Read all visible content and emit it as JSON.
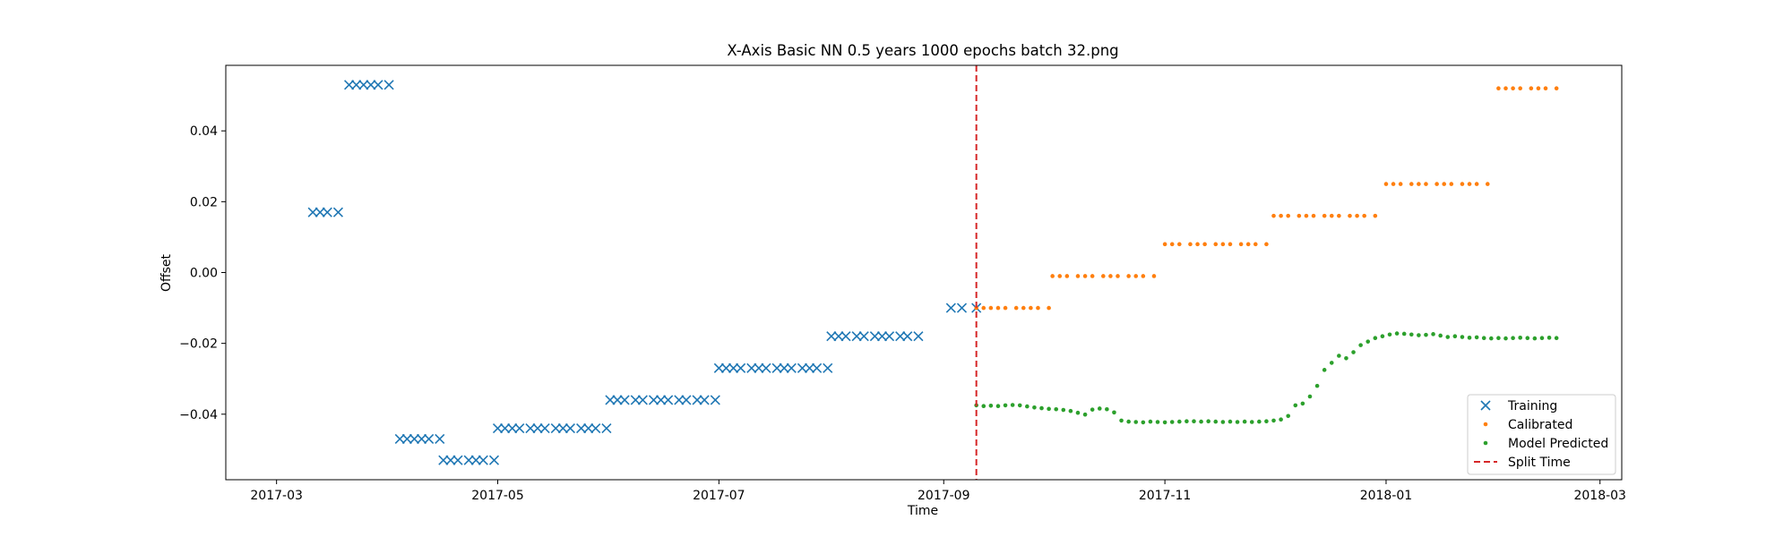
{
  "chart_data": {
    "type": "scatter",
    "title": "X-Axis Basic NN 0.5 years 1000 epochs batch 32.png",
    "xlabel": "Time",
    "ylabel": "Offset",
    "xlim": [
      "2017-02-15",
      "2018-03-07"
    ],
    "ylim": [
      -0.0585,
      0.0585
    ],
    "x_ticks": [
      {
        "date": "2017-03-01",
        "label": "2017-03"
      },
      {
        "date": "2017-05-01",
        "label": "2017-05"
      },
      {
        "date": "2017-07-01",
        "label": "2017-07"
      },
      {
        "date": "2017-09-01",
        "label": "2017-09"
      },
      {
        "date": "2017-11-01",
        "label": "2017-11"
      },
      {
        "date": "2018-01-01",
        "label": "2018-01"
      },
      {
        "date": "2018-03-01",
        "label": "2018-03"
      }
    ],
    "y_ticks": [
      {
        "value": -0.04,
        "label": "−0.04"
      },
      {
        "value": -0.02,
        "label": "−0.02"
      },
      {
        "value": 0.0,
        "label": "0.00"
      },
      {
        "value": 0.02,
        "label": "0.02"
      },
      {
        "value": 0.04,
        "label": "0.04"
      }
    ],
    "grid": false,
    "legend_position": "lower-right",
    "split_time": "2017-09-10",
    "series": [
      {
        "name": "Training",
        "marker": "x",
        "color": "#1f77b4",
        "segments": [
          {
            "start": "2017-03-11",
            "end": "2017-03-18",
            "y": 0.017,
            "count": 4
          },
          {
            "start": "2017-03-21",
            "end": "2017-04-01",
            "y": 0.053,
            "count": 6
          },
          {
            "start": "2017-04-04",
            "end": "2017-04-15",
            "y": -0.047,
            "count": 6
          },
          {
            "start": "2017-04-16",
            "end": "2017-04-30",
            "y": -0.053,
            "count": 7
          },
          {
            "start": "2017-05-01",
            "end": "2017-05-31",
            "y": -0.044,
            "count": 14
          },
          {
            "start": "2017-06-01",
            "end": "2017-06-30",
            "y": -0.036,
            "count": 13
          },
          {
            "start": "2017-07-01",
            "end": "2017-07-31",
            "y": -0.027,
            "count": 14
          },
          {
            "start": "2017-08-01",
            "end": "2017-08-25",
            "y": -0.018,
            "count": 11
          },
          {
            "start": "2017-09-03",
            "end": "2017-09-10",
            "y": -0.01,
            "count": 3
          }
        ]
      },
      {
        "name": "Calibrated",
        "marker": "dot",
        "color": "#ff7f0e",
        "segments": [
          {
            "start": "2017-09-10",
            "end": "2017-09-30",
            "y": -0.01,
            "count": 10
          },
          {
            "start": "2017-10-01",
            "end": "2017-10-29",
            "y": -0.001,
            "count": 13
          },
          {
            "start": "2017-11-01",
            "end": "2017-11-29",
            "y": 0.008,
            "count": 13
          },
          {
            "start": "2017-12-01",
            "end": "2017-12-29",
            "y": 0.016,
            "count": 13
          },
          {
            "start": "2018-01-01",
            "end": "2018-01-29",
            "y": 0.025,
            "count": 13
          },
          {
            "start": "2018-02-01",
            "end": "2018-02-17",
            "y": 0.052,
            "count": 8
          }
        ]
      },
      {
        "name": "Model Predicted",
        "marker": "dot",
        "color": "#2ca02c",
        "points": [
          [
            "2017-09-10",
            -0.0375
          ],
          [
            "2017-09-12",
            -0.0377
          ],
          [
            "2017-09-14",
            -0.0376
          ],
          [
            "2017-09-16",
            -0.0377
          ],
          [
            "2017-09-18",
            -0.0375
          ],
          [
            "2017-09-20",
            -0.0374
          ],
          [
            "2017-09-22",
            -0.0375
          ],
          [
            "2017-09-24",
            -0.0378
          ],
          [
            "2017-09-26",
            -0.0381
          ],
          [
            "2017-09-28",
            -0.0383
          ],
          [
            "2017-09-30",
            -0.0385
          ],
          [
            "2017-10-02",
            -0.0386
          ],
          [
            "2017-10-04",
            -0.0388
          ],
          [
            "2017-10-06",
            -0.0391
          ],
          [
            "2017-10-08",
            -0.0396
          ],
          [
            "2017-10-10",
            -0.0401
          ],
          [
            "2017-10-12",
            -0.0387
          ],
          [
            "2017-10-14",
            -0.0384
          ],
          [
            "2017-10-16",
            -0.0386
          ],
          [
            "2017-10-18",
            -0.0395
          ],
          [
            "2017-10-20",
            -0.0418
          ],
          [
            "2017-10-22",
            -0.0421
          ],
          [
            "2017-10-24",
            -0.0422
          ],
          [
            "2017-10-26",
            -0.0423
          ],
          [
            "2017-10-28",
            -0.0421
          ],
          [
            "2017-10-30",
            -0.0422
          ],
          [
            "2017-11-01",
            -0.0423
          ],
          [
            "2017-11-03",
            -0.0422
          ],
          [
            "2017-11-05",
            -0.0421
          ],
          [
            "2017-11-07",
            -0.042
          ],
          [
            "2017-11-09",
            -0.042
          ],
          [
            "2017-11-11",
            -0.0421
          ],
          [
            "2017-11-13",
            -0.042
          ],
          [
            "2017-11-15",
            -0.0421
          ],
          [
            "2017-11-17",
            -0.0422
          ],
          [
            "2017-11-19",
            -0.0421
          ],
          [
            "2017-11-21",
            -0.0422
          ],
          [
            "2017-11-23",
            -0.0421
          ],
          [
            "2017-11-25",
            -0.0422
          ],
          [
            "2017-11-27",
            -0.0421
          ],
          [
            "2017-11-29",
            -0.042
          ],
          [
            "2017-12-01",
            -0.0418
          ],
          [
            "2017-12-03",
            -0.0415
          ],
          [
            "2017-12-05",
            -0.0405
          ],
          [
            "2017-12-07",
            -0.0375
          ],
          [
            "2017-12-09",
            -0.037
          ],
          [
            "2017-12-11",
            -0.035
          ],
          [
            "2017-12-13",
            -0.032
          ],
          [
            "2017-12-15",
            -0.0275
          ],
          [
            "2017-12-17",
            -0.0255
          ],
          [
            "2017-12-19",
            -0.0235
          ],
          [
            "2017-12-21",
            -0.0242
          ],
          [
            "2017-12-23",
            -0.0225
          ],
          [
            "2017-12-25",
            -0.0205
          ],
          [
            "2017-12-27",
            -0.0195
          ],
          [
            "2017-12-29",
            -0.0185
          ],
          [
            "2017-12-31",
            -0.018
          ],
          [
            "2018-01-02",
            -0.0175
          ],
          [
            "2018-01-04",
            -0.0172
          ],
          [
            "2018-01-06",
            -0.0173
          ],
          [
            "2018-01-08",
            -0.0175
          ],
          [
            "2018-01-10",
            -0.0177
          ],
          [
            "2018-01-12",
            -0.0176
          ],
          [
            "2018-01-14",
            -0.0174
          ],
          [
            "2018-01-16",
            -0.0178
          ],
          [
            "2018-01-18",
            -0.0182
          ],
          [
            "2018-01-20",
            -0.018
          ],
          [
            "2018-01-22",
            -0.0182
          ],
          [
            "2018-01-24",
            -0.0184
          ],
          [
            "2018-01-26",
            -0.0183
          ],
          [
            "2018-01-28",
            -0.0185
          ],
          [
            "2018-01-30",
            -0.0186
          ],
          [
            "2018-02-01",
            -0.0185
          ],
          [
            "2018-02-03",
            -0.0186
          ],
          [
            "2018-02-05",
            -0.0185
          ],
          [
            "2018-02-07",
            -0.0184
          ],
          [
            "2018-02-09",
            -0.0185
          ],
          [
            "2018-02-11",
            -0.0186
          ],
          [
            "2018-02-13",
            -0.0185
          ],
          [
            "2018-02-15",
            -0.0184
          ],
          [
            "2018-02-17",
            -0.0185
          ]
        ]
      }
    ],
    "split_line": {
      "name": "Split Time",
      "color": "#d62728",
      "style": "dashed"
    }
  }
}
